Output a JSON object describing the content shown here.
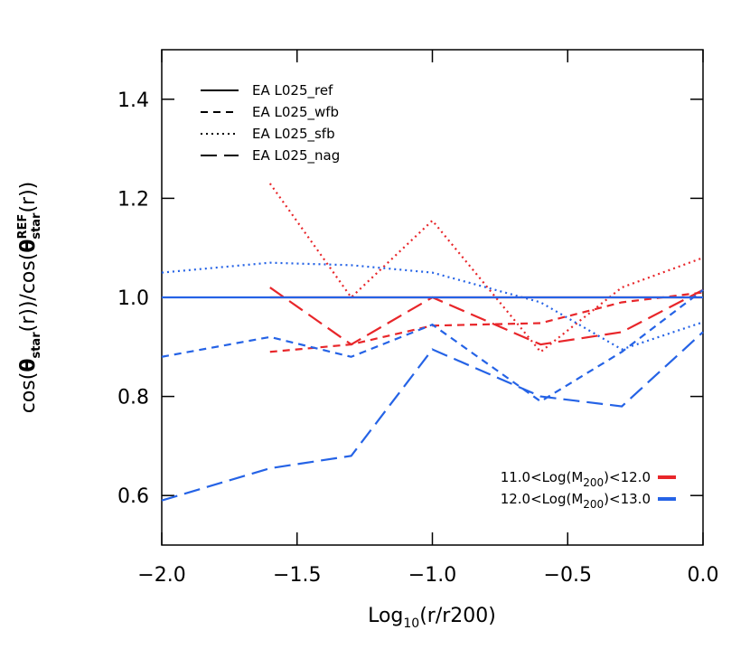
{
  "chart_data": {
    "type": "line",
    "xlabel_parts": [
      "Log",
      "10",
      "(r/r200)"
    ],
    "ylabel_parts": [
      "cos(",
      "θ",
      "star",
      "(r))/cos(",
      "θ",
      "REF",
      "star",
      "(r))"
    ],
    "x": [
      -2.0,
      -1.6,
      -1.3,
      -1.0,
      -0.6,
      -0.3,
      0.0
    ],
    "xlim": [
      -2.0,
      0.0
    ],
    "ylim": [
      0.5,
      1.5
    ],
    "xticks": [
      {
        "value": -2.0,
        "label": "−2.0"
      },
      {
        "value": -1.5,
        "label": "−1.5"
      },
      {
        "value": -1.0,
        "label": "−1.0"
      },
      {
        "value": -0.5,
        "label": "−0.5"
      },
      {
        "value": 0.0,
        "label": "0.0"
      }
    ],
    "yticks": [
      0.6,
      0.8,
      {
        "value": 1.0,
        "label": "1.0"
      },
      1.2,
      1.4
    ],
    "bins": [
      {
        "label_parts": [
          "11.0<Log(M",
          "200",
          ")<12.0"
        ],
        "color": "#e8262a"
      },
      {
        "label_parts": [
          "12.0<Log(M",
          "200",
          ")<13.0"
        ],
        "color": "#2563e6"
      }
    ],
    "series": [
      {
        "name": "EA L025_ref",
        "dash": "solid",
        "values": [
          [
            null,
            1.0,
            1.0,
            1.0,
            1.0,
            1.0,
            1.0
          ],
          [
            1.0,
            1.0,
            1.0,
            1.0,
            1.0,
            1.0,
            1.0
          ]
        ]
      },
      {
        "name": "EA L025_wfb",
        "dash": "dashed",
        "values": [
          [
            null,
            0.89,
            0.905,
            0.943,
            0.948,
            0.99,
            1.01
          ],
          [
            0.88,
            0.92,
            0.88,
            0.945,
            0.79,
            0.89,
            1.015
          ]
        ]
      },
      {
        "name": "EA L025_sfb",
        "dash": "dotted",
        "values": [
          [
            null,
            1.23,
            1.0,
            1.155,
            0.89,
            1.02,
            1.08
          ],
          [
            1.05,
            1.07,
            1.065,
            1.05,
            0.99,
            0.895,
            0.95
          ]
        ]
      },
      {
        "name": "EA L025_nag",
        "dash": "longdash",
        "values": [
          [
            null,
            1.02,
            0.905,
            1.0,
            0.905,
            0.93,
            1.015
          ],
          [
            0.59,
            0.655,
            0.68,
            0.895,
            0.8,
            0.78,
            0.93
          ]
        ]
      }
    ]
  }
}
